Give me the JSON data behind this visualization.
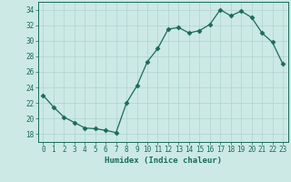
{
  "x": [
    0,
    1,
    2,
    3,
    4,
    5,
    6,
    7,
    8,
    9,
    10,
    11,
    12,
    13,
    14,
    15,
    16,
    17,
    18,
    19,
    20,
    21,
    22,
    23
  ],
  "y": [
    23,
    21.5,
    20.2,
    19.5,
    18.8,
    18.7,
    18.5,
    18.2,
    22.0,
    24.2,
    27.3,
    29.0,
    31.5,
    31.7,
    31.0,
    31.3,
    32.1,
    34.0,
    33.2,
    33.8,
    33.0,
    31.0,
    29.8,
    27.0
  ],
  "line_color": "#1a6b5a",
  "marker": "D",
  "marker_size": 2.5,
  "bg_color": "#cce9e5",
  "grid_color": "#aed4cf",
  "xlabel": "Humidex (Indice chaleur)",
  "xlim": [
    -0.5,
    23.5
  ],
  "ylim": [
    17,
    35
  ],
  "yticks": [
    18,
    20,
    22,
    24,
    26,
    28,
    30,
    32,
    34
  ],
  "xticks": [
    0,
    1,
    2,
    3,
    4,
    5,
    6,
    7,
    8,
    9,
    10,
    11,
    12,
    13,
    14,
    15,
    16,
    17,
    18,
    19,
    20,
    21,
    22,
    23
  ],
  "tick_color": "#1a6b5a",
  "axis_color": "#1a6b5a",
  "label_fontsize": 6.5,
  "tick_fontsize": 5.5
}
